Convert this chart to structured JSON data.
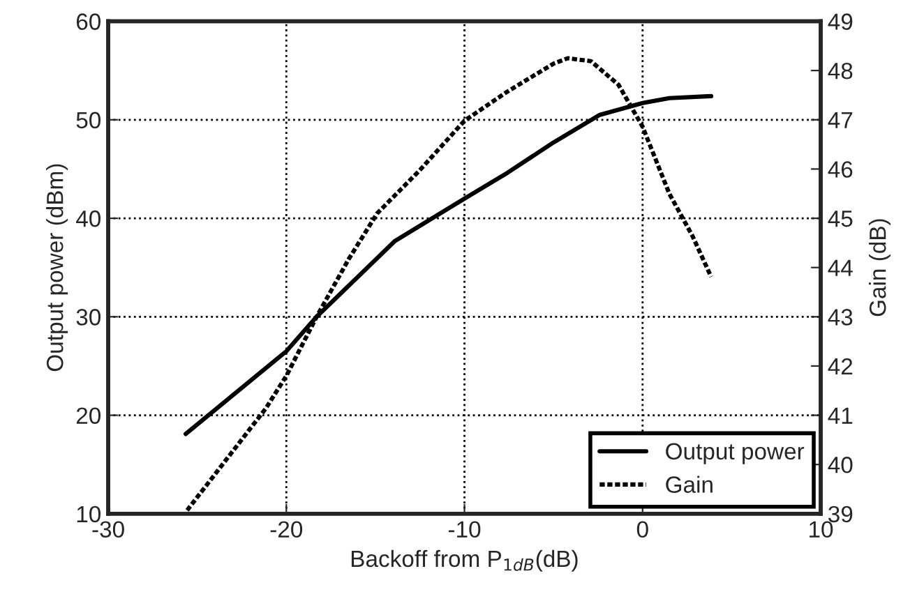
{
  "chart_data": {
    "type": "line",
    "xlabel": "Backoff from P$_{1dB}$(dB)",
    "ylabel": "Output power (dBm)",
    "y2label": "Gain (dB)",
    "xlim": [
      -30,
      10
    ],
    "xticks": [
      -30,
      -20,
      -10,
      0,
      10
    ],
    "ylim": [
      10,
      60
    ],
    "yticks": [
      10,
      20,
      30,
      40,
      50,
      60
    ],
    "y2lim": [
      39,
      49
    ],
    "y2ticks": [
      39,
      40,
      41,
      42,
      43,
      44,
      45,
      46,
      47,
      48,
      49
    ],
    "grid": true,
    "legend": "bottom right",
    "marker": "none",
    "series": [
      {
        "name": "Output power",
        "color": "#000000",
        "line_style": "solid",
        "x": [
          -25.65,
          -20,
          -18.3,
          -13.9,
          -10,
          -7.6,
          -5.0,
          -2.4,
          0,
          1.5,
          3.85
        ],
        "values": [
          18.1,
          26.5,
          30,
          37.7,
          42.0,
          44.6,
          47.7,
          50.5,
          51.7,
          52.2,
          52.4
        ]
      },
      {
        "name": "Gain",
        "color": "#000000",
        "line_style": "dotted",
        "axis": "y2",
        "x": [
          -25.57,
          -21.15,
          -20,
          -18.3,
          -16.5,
          -14.9,
          -12.55,
          -10,
          -7.6,
          -5.0,
          -4.2,
          -2.9,
          -1.35,
          0,
          1.5,
          2.8,
          3.85
        ],
        "values": [
          39.07,
          41.14,
          41.8,
          43.0,
          44.17,
          45.1,
          45.96,
          46.98,
          47.57,
          48.14,
          48.25,
          48.19,
          47.71,
          46.86,
          45.5,
          44.64,
          43.81
        ]
      }
    ]
  }
}
